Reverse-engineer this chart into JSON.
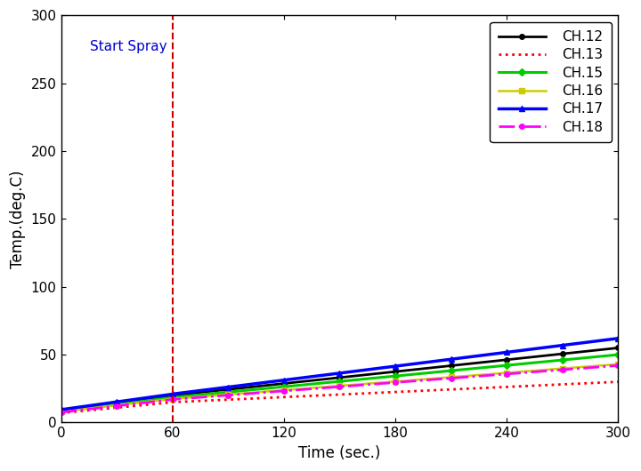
{
  "title": "",
  "xlabel": "Time (sec.)",
  "ylabel": "Temp.(deg.C)",
  "xlim": [
    0,
    300
  ],
  "ylim": [
    0,
    300
  ],
  "xticks": [
    0,
    60,
    120,
    180,
    240,
    300
  ],
  "yticks": [
    0,
    50,
    100,
    150,
    200,
    250,
    300
  ],
  "spray_x": 60,
  "spray_label": "Start Spray",
  "spray_label_color": "#0000cc",
  "spray_line_color": "#cc0000",
  "channels": [
    {
      "name": "CH.12",
      "color": "#000000",
      "linestyle": "-",
      "marker": "o",
      "markersize": 4,
      "markevery": 30,
      "linewidth": 2.0,
      "y_start": 9.0,
      "y_at_60": 20.0,
      "y_end": 55.0
    },
    {
      "name": "CH.13",
      "color": "#ff0000",
      "linestyle": ":",
      "marker": "",
      "markersize": 0,
      "markevery": 30,
      "linewidth": 2.0,
      "y_start": 7.0,
      "y_at_60": 15.0,
      "y_end": 30.0
    },
    {
      "name": "CH.15",
      "color": "#00cc00",
      "linestyle": "-",
      "marker": "D",
      "markersize": 4,
      "markevery": 30,
      "linewidth": 2.2,
      "y_start": 8.5,
      "y_at_60": 18.5,
      "y_end": 50.0
    },
    {
      "name": "CH.16",
      "color": "#cccc00",
      "linestyle": "-",
      "marker": "s",
      "markersize": 4,
      "markevery": 30,
      "linewidth": 1.8,
      "y_start": 8.0,
      "y_at_60": 17.5,
      "y_end": 43.0
    },
    {
      "name": "CH.17",
      "color": "#0000ff",
      "linestyle": "-",
      "marker": "^",
      "markersize": 5,
      "markevery": 30,
      "linewidth": 2.5,
      "y_start": 9.5,
      "y_at_60": 21.0,
      "y_end": 62.0
    },
    {
      "name": "CH.18",
      "color": "#ff00ff",
      "linestyle": "-.",
      "marker": "o",
      "markersize": 4,
      "markevery": 30,
      "linewidth": 2.0,
      "y_start": 7.5,
      "y_at_60": 17.0,
      "y_end": 42.0
    }
  ],
  "legend_loc": "upper right",
  "figsize": [
    7.2,
    5.3
  ],
  "dpi": 100
}
